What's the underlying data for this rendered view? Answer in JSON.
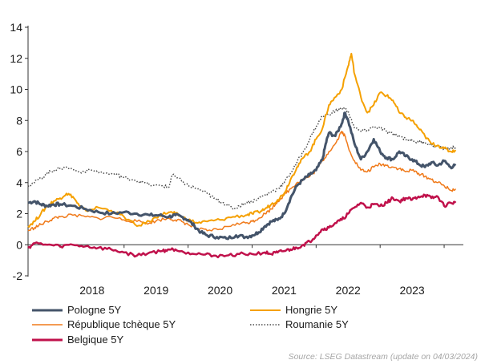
{
  "chart_data": {
    "type": "line",
    "title": "",
    "xlabel": "",
    "ylabel": "",
    "ylim": [
      -2,
      14
    ],
    "yticks": [
      -2,
      0,
      2,
      4,
      6,
      8,
      10,
      12,
      14
    ],
    "xlim": [
      2017.5,
      2024.3
    ],
    "year_labels": [
      "2018",
      "2019",
      "2020",
      "2021",
      "2022",
      "2023"
    ],
    "legend_position": "bottom",
    "source": "Source: LSEG Datastream (update on 04/03/2024)",
    "series": [
      {
        "name": "Pologne 5Y",
        "color": "#44546a",
        "style": "solid",
        "width": 3,
        "x": [
          2017.5,
          2017.6,
          2017.7,
          2017.8,
          2017.9,
          2018.0,
          2018.2,
          2018.4,
          2018.6,
          2018.8,
          2019.0,
          2019.2,
          2019.4,
          2019.55,
          2019.7,
          2019.8,
          2019.9,
          2020.0,
          2020.1,
          2020.2,
          2020.3,
          2020.45,
          2020.6,
          2020.75,
          2020.9,
          2021.0,
          2021.1,
          2021.2,
          2021.3,
          2021.4,
          2021.5,
          2021.6,
          2021.7,
          2021.8,
          2021.9,
          2022.0,
          2022.1,
          2022.15,
          2022.2,
          2022.3,
          2022.4,
          2022.45,
          2022.5,
          2022.6,
          2022.7,
          2022.8,
          2022.9,
          2023.0,
          2023.1,
          2023.2,
          2023.3,
          2023.4,
          2023.5,
          2023.6,
          2023.7,
          2023.8,
          2023.9,
          2024.0,
          2024.1,
          2024.18
        ],
        "values": [
          2.7,
          2.8,
          2.6,
          2.5,
          2.6,
          2.6,
          2.5,
          2.3,
          2.1,
          2.0,
          2.1,
          2.0,
          1.9,
          1.9,
          1.8,
          1.9,
          1.8,
          1.6,
          1.2,
          0.8,
          0.6,
          0.5,
          0.4,
          0.6,
          0.5,
          0.6,
          0.8,
          1.2,
          1.5,
          1.6,
          2.0,
          3.0,
          3.8,
          4.2,
          4.5,
          4.8,
          5.5,
          6.5,
          7.2,
          7.0,
          7.8,
          8.5,
          8.0,
          6.5,
          5.5,
          6.0,
          6.8,
          6.0,
          5.6,
          5.5,
          6.0,
          5.7,
          5.5,
          5.2,
          5.0,
          5.3,
          5.1,
          5.4,
          5.0,
          5.1
        ]
      },
      {
        "name": "Hongrie 5Y",
        "color": "#f5a000",
        "style": "solid",
        "width": 2,
        "x": [
          2017.5,
          2017.6,
          2017.7,
          2017.8,
          2017.9,
          2018.0,
          2018.1,
          2018.2,
          2018.3,
          2018.4,
          2018.6,
          2018.8,
          2019.0,
          2019.2,
          2019.4,
          2019.55,
          2019.7,
          2019.8,
          2019.9,
          2020.0,
          2020.15,
          2020.3,
          2020.5,
          2020.7,
          2020.9,
          2021.0,
          2021.1,
          2021.2,
          2021.3,
          2021.4,
          2021.5,
          2021.6,
          2021.7,
          2021.8,
          2021.9,
          2022.0,
          2022.1,
          2022.2,
          2022.3,
          2022.4,
          2022.5,
          2022.55,
          2022.6,
          2022.7,
          2022.8,
          2022.9,
          2023.0,
          2023.1,
          2023.2,
          2023.3,
          2023.4,
          2023.5,
          2023.6,
          2023.7,
          2023.8,
          2023.9,
          2024.0,
          2024.1,
          2024.18
        ],
        "values": [
          1.2,
          1.5,
          2.0,
          2.5,
          2.8,
          3.0,
          3.3,
          3.1,
          2.5,
          2.2,
          2.4,
          2.2,
          1.8,
          1.2,
          1.5,
          1.9,
          2.1,
          2.0,
          1.8,
          1.6,
          1.4,
          1.5,
          1.6,
          1.8,
          1.9,
          2.0,
          2.1,
          2.3,
          2.6,
          2.9,
          3.3,
          4.2,
          5.0,
          5.6,
          6.0,
          6.8,
          7.5,
          9.0,
          9.5,
          10.0,
          11.5,
          12.3,
          11.0,
          9.5,
          8.5,
          9.0,
          9.8,
          9.6,
          9.3,
          8.5,
          8.2,
          8.0,
          7.5,
          7.0,
          6.5,
          6.4,
          6.2,
          6.0,
          6.1
        ]
      },
      {
        "name": "République tchèque 5Y",
        "color": "#f07a1a",
        "style": "solid",
        "width": 1.5,
        "x": [
          2017.5,
          2017.6,
          2017.7,
          2017.8,
          2017.9,
          2018.0,
          2018.2,
          2018.4,
          2018.6,
          2018.8,
          2019.0,
          2019.2,
          2019.4,
          2019.55,
          2019.7,
          2019.8,
          2019.9,
          2020.0,
          2020.15,
          2020.3,
          2020.5,
          2020.7,
          2020.9,
          2021.0,
          2021.1,
          2021.2,
          2021.3,
          2021.4,
          2021.5,
          2021.6,
          2021.7,
          2021.8,
          2021.9,
          2022.0,
          2022.1,
          2022.2,
          2022.3,
          2022.4,
          2022.45,
          2022.5,
          2022.6,
          2022.7,
          2022.8,
          2022.9,
          2023.0,
          2023.1,
          2023.2,
          2023.3,
          2023.4,
          2023.5,
          2023.6,
          2023.7,
          2023.8,
          2023.9,
          2024.0,
          2024.1,
          2024.18
        ],
        "values": [
          0.9,
          1.1,
          1.3,
          1.5,
          1.7,
          1.8,
          1.9,
          1.8,
          1.7,
          1.8,
          1.6,
          1.5,
          1.4,
          1.6,
          1.7,
          1.6,
          1.5,
          1.3,
          1.0,
          0.9,
          1.0,
          1.3,
          1.4,
          1.5,
          1.7,
          2.0,
          2.3,
          2.8,
          3.2,
          3.6,
          4.0,
          4.2,
          4.4,
          4.8,
          5.4,
          6.0,
          6.5,
          7.3,
          7.0,
          6.3,
          5.4,
          4.8,
          4.7,
          5.0,
          5.2,
          5.1,
          5.0,
          4.9,
          4.7,
          4.8,
          4.6,
          4.4,
          4.2,
          4.0,
          3.8,
          3.5,
          3.6
        ]
      },
      {
        "name": "Roumanie 5Y",
        "color": "#4d4d4d",
        "style": "dotted",
        "width": 1.5,
        "x": [
          2017.5,
          2017.6,
          2017.7,
          2017.8,
          2017.9,
          2018.0,
          2018.1,
          2018.3,
          2018.5,
          2018.7,
          2018.9,
          2019.0,
          2019.15,
          2019.3,
          2019.45,
          2019.6,
          2019.7,
          2019.75,
          2019.9,
          2020.0,
          2020.15,
          2020.3,
          2020.4,
          2020.5,
          2020.6,
          2020.7,
          2020.8,
          2020.9,
          2021.0,
          2021.1,
          2021.2,
          2021.3,
          2021.4,
          2021.5,
          2021.6,
          2021.7,
          2021.8,
          2021.9,
          2022.0,
          2022.1,
          2022.2,
          2022.3,
          2022.4,
          2022.5,
          2022.6,
          2022.7,
          2022.8,
          2022.9,
          2023.0,
          2023.1,
          2023.2,
          2023.3,
          2023.4,
          2023.5,
          2023.6,
          2023.7,
          2023.8,
          2023.9,
          2024.0,
          2024.1,
          2024.18
        ],
        "values": [
          3.8,
          4.0,
          4.3,
          4.6,
          4.8,
          4.9,
          5.0,
          4.7,
          4.8,
          4.6,
          4.5,
          4.3,
          4.2,
          4.0,
          3.8,
          3.8,
          3.7,
          4.5,
          4.1,
          3.8,
          3.6,
          3.3,
          3.0,
          2.8,
          2.6,
          2.3,
          2.5,
          2.7,
          2.8,
          3.0,
          3.2,
          3.4,
          3.6,
          4.0,
          4.6,
          5.3,
          6.0,
          6.8,
          7.6,
          8.3,
          8.4,
          8.6,
          8.8,
          8.6,
          7.5,
          7.3,
          7.4,
          7.6,
          7.5,
          7.3,
          7.1,
          7.0,
          6.8,
          6.7,
          6.6,
          6.6,
          6.4,
          6.3,
          6.2,
          6.2,
          6.3
        ]
      },
      {
        "name": "Belgique 5Y",
        "color": "#c0114b",
        "style": "solid",
        "width": 2.5,
        "x": [
          2017.5,
          2017.6,
          2017.8,
          2018.0,
          2018.2,
          2018.4,
          2018.6,
          2018.8,
          2019.0,
          2019.2,
          2019.4,
          2019.6,
          2019.7,
          2019.8,
          2020.0,
          2020.2,
          2020.4,
          2020.6,
          2020.8,
          2021.0,
          2021.2,
          2021.3,
          2021.4,
          2021.5,
          2021.6,
          2021.7,
          2021.8,
          2021.9,
          2022.0,
          2022.1,
          2022.2,
          2022.3,
          2022.4,
          2022.5,
          2022.6,
          2022.7,
          2022.8,
          2022.9,
          2023.0,
          2023.1,
          2023.2,
          2023.3,
          2023.4,
          2023.5,
          2023.6,
          2023.7,
          2023.8,
          2023.9,
          2024.0,
          2024.1,
          2024.18
        ],
        "values": [
          -0.2,
          0.1,
          0.0,
          -0.1,
          0.0,
          -0.1,
          -0.2,
          -0.3,
          -0.5,
          -0.7,
          -0.5,
          -0.4,
          -0.3,
          -0.3,
          -0.5,
          -0.6,
          -0.7,
          -0.7,
          -0.6,
          -0.6,
          -0.5,
          -0.6,
          -0.5,
          -0.4,
          -0.3,
          -0.2,
          0.0,
          0.2,
          0.6,
          1.0,
          1.1,
          1.4,
          1.6,
          2.0,
          2.4,
          2.7,
          2.4,
          2.6,
          2.5,
          2.7,
          3.0,
          2.8,
          3.0,
          2.9,
          3.1,
          3.2,
          3.0,
          3.1,
          2.5,
          2.7,
          2.7
        ]
      }
    ]
  }
}
